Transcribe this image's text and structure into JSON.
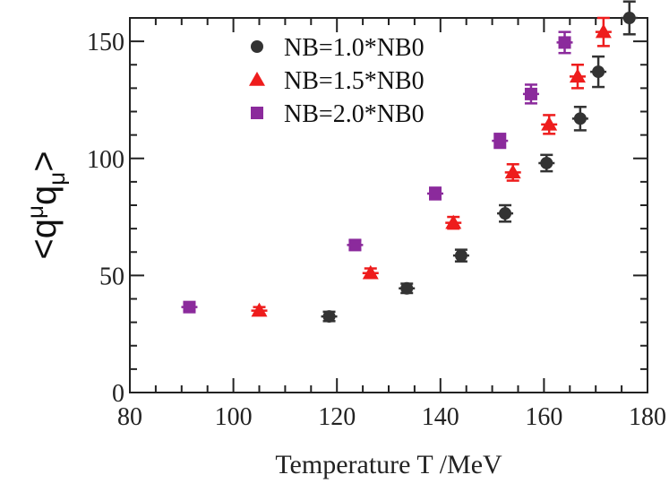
{
  "chart_data": {
    "type": "scatter",
    "title": "",
    "xlabel": "Temperature T /MeV",
    "ylabel": "<qμqμ>",
    "ylabel_parts": {
      "open": "<",
      "q1": "q",
      "sup": "μ",
      "q2": "q",
      "sub": "μ",
      "close": ">"
    },
    "xlim": [
      80,
      180
    ],
    "ylim": [
      0,
      160
    ],
    "x_ticks": [
      80,
      100,
      120,
      140,
      160,
      180
    ],
    "y_ticks": [
      0,
      50,
      100,
      150
    ],
    "grid": false,
    "legend_position": "top-center",
    "series": [
      {
        "name": "NB=1.0*NB0",
        "marker": "circle",
        "color": "#333333",
        "points": [
          {
            "x": 118.5,
            "y": 32.5,
            "err": 2.0
          },
          {
            "x": 133.5,
            "y": 44.5,
            "err": 2.0
          },
          {
            "x": 144.0,
            "y": 58.5,
            "err": 2.5
          },
          {
            "x": 152.5,
            "y": 76.5,
            "err": 3.5
          },
          {
            "x": 160.5,
            "y": 98.0,
            "err": 3.5
          },
          {
            "x": 167.0,
            "y": 117.0,
            "err": 5.0
          },
          {
            "x": 170.5,
            "y": 137.0,
            "err": 6.5
          },
          {
            "x": 176.5,
            "y": 160.0,
            "err": 7.0
          }
        ]
      },
      {
        "name": "NB=1.5*NB0",
        "marker": "triangle",
        "color": "#ee1c1c",
        "points": [
          {
            "x": 105.0,
            "y": 35.0,
            "err": 1.5
          },
          {
            "x": 126.5,
            "y": 51.0,
            "err": 2.0
          },
          {
            "x": 142.5,
            "y": 72.5,
            "err": 2.5
          },
          {
            "x": 154.0,
            "y": 94.0,
            "err": 3.5
          },
          {
            "x": 161.0,
            "y": 114.5,
            "err": 4.0
          },
          {
            "x": 166.5,
            "y": 135.0,
            "err": 5.0
          },
          {
            "x": 171.5,
            "y": 154.0,
            "err": 6.0
          }
        ]
      },
      {
        "name": "NB=2.0*NB0",
        "marker": "square",
        "color": "#8b2a9c",
        "points": [
          {
            "x": 91.5,
            "y": 36.5,
            "err": 1.5
          },
          {
            "x": 123.5,
            "y": 63.0,
            "err": 2.0
          },
          {
            "x": 139.0,
            "y": 85.0,
            "err": 2.5
          },
          {
            "x": 151.5,
            "y": 107.5,
            "err": 3.0
          },
          {
            "x": 157.5,
            "y": 127.5,
            "err": 4.0
          },
          {
            "x": 164.0,
            "y": 149.5,
            "err": 4.5
          }
        ]
      }
    ]
  }
}
